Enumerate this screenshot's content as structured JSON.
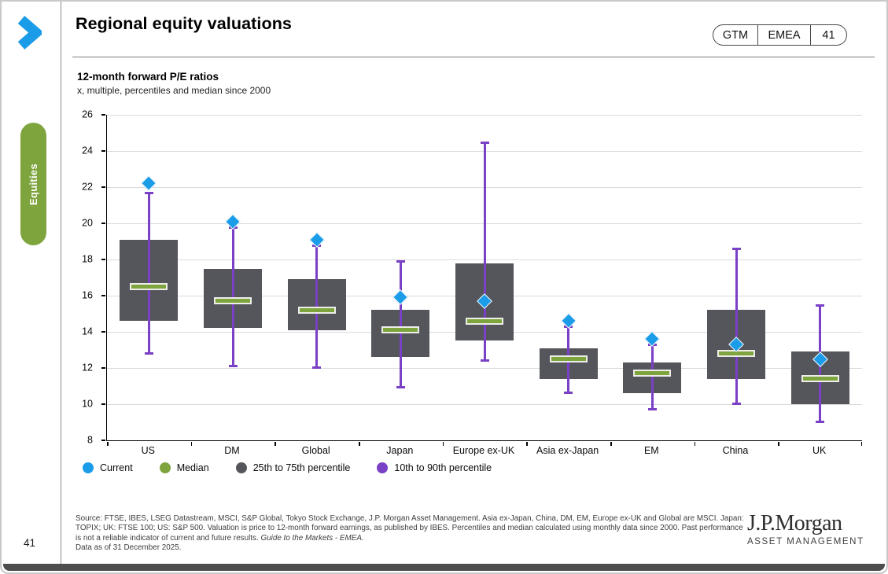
{
  "page": {
    "page_number": "41",
    "sidebar_tab": "Equities"
  },
  "header": {
    "title": "Regional equity valuations",
    "badge": {
      "program": "GTM",
      "region": "EMEA",
      "page": "41"
    }
  },
  "colors": {
    "accent_blue": "#1B9CE9",
    "accent_green": "#7EA43D",
    "box_gray": "#54565B",
    "whisker_purple": "#7A40C5"
  },
  "chart_data": {
    "type": "box-plot",
    "title": "12-month forward P/E ratios",
    "subtitle": "x, multiple, percentiles and median since 2000",
    "ylim": [
      8,
      26
    ],
    "ytick_step": 2,
    "grid": "horizontal gridlines at each y tick",
    "legend_position": "bottom-left below x axis",
    "categories": [
      "US",
      "DM",
      "Global",
      "Japan",
      "Europe ex-UK",
      "Asia ex-Japan",
      "EM",
      "China",
      "UK"
    ],
    "series": [
      {
        "name": "Current",
        "values": [
          22.2,
          20.1,
          19.1,
          15.9,
          15.7,
          14.6,
          13.6,
          13.3,
          12.5
        ]
      },
      {
        "name": "Median",
        "values": [
          16.5,
          15.7,
          15.2,
          14.1,
          14.6,
          12.5,
          11.7,
          12.8,
          11.4
        ]
      },
      {
        "name": "75th percentile",
        "values": [
          19.1,
          17.5,
          16.9,
          15.2,
          17.8,
          13.1,
          12.3,
          15.2,
          12.9
        ]
      },
      {
        "name": "25th percentile",
        "values": [
          14.6,
          14.2,
          14.1,
          12.6,
          13.5,
          11.4,
          10.6,
          11.4,
          10.0
        ]
      },
      {
        "name": "90th percentile",
        "values": [
          21.7,
          19.8,
          18.8,
          17.9,
          24.5,
          14.3,
          13.3,
          18.6,
          15.5
        ]
      },
      {
        "name": "10th percentile",
        "values": [
          12.8,
          12.1,
          12.0,
          10.9,
          12.4,
          10.6,
          9.7,
          10.0,
          9.0
        ]
      }
    ],
    "legend": [
      {
        "label": "Current",
        "color": "#1B9CE9"
      },
      {
        "label": "Median",
        "color": "#7EA43D"
      },
      {
        "label": "25th to 75th percentile",
        "color": "#54565B"
      },
      {
        "label": "10th to 90th percentile",
        "color": "#7A40C5"
      }
    ]
  },
  "footer": {
    "source_main": "Source: FTSE, IBES, LSEG Datastream, MSCI, S&P Global, Tokyo Stock Exchange, J.P. Morgan Asset Management. Asia ex-Japan, China, DM, EM, Europe ex-UK and Global are MSCI. Japan: TOPIX; UK: FTSE 100; US: S&P 500. Valuation is price to 12-month forward earnings, as published by IBES. Percentiles and median calculated using monthly data since 2000. Past performance is not a reliable indicator of current and future results. ",
    "source_italic": "Guide to the Markets - EMEA.",
    "source_date": "Data as of 31 December 2025.",
    "logo_top": "J.P.Morgan",
    "logo_bottom": "ASSET MANAGEMENT"
  }
}
